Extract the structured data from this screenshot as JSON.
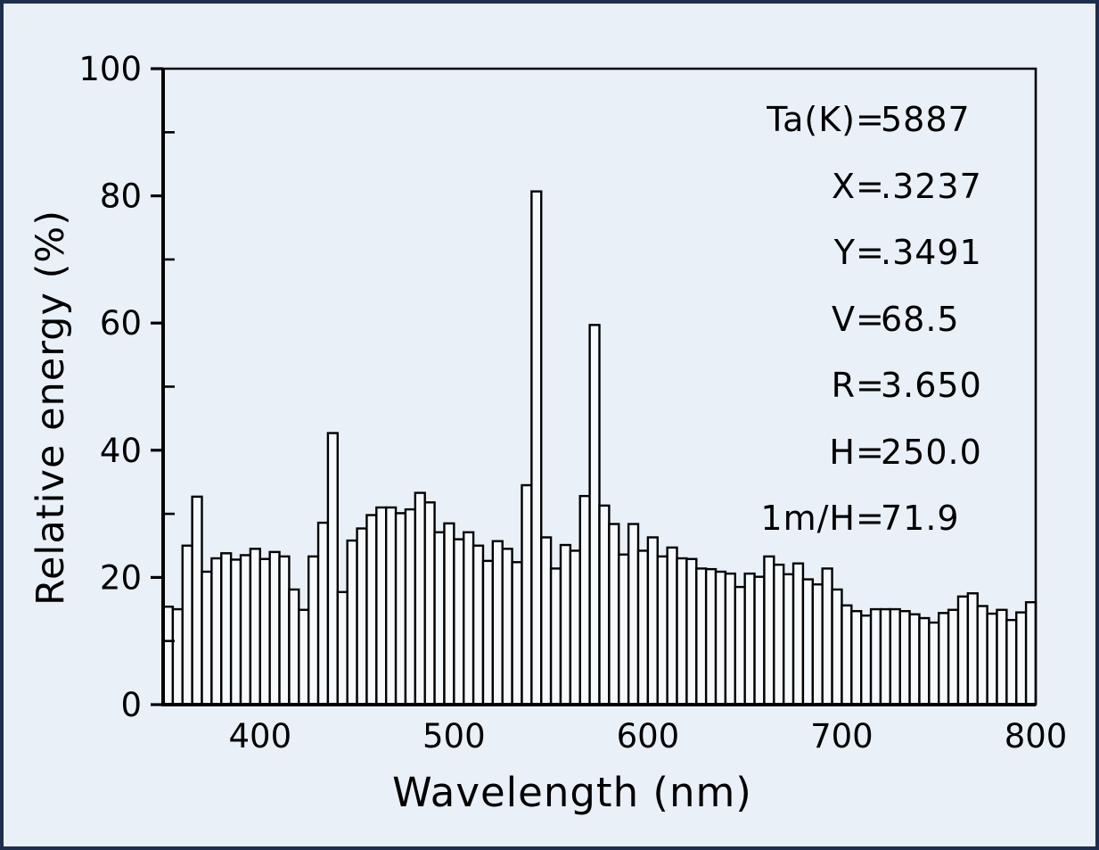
{
  "page": {
    "background_color": "#eaf0f8",
    "border_color": "#1e2f4d"
  },
  "chart_data": {
    "type": "bar",
    "title": "",
    "xlabel": "Wavelength (nm)",
    "ylabel": "Relative energy (%)",
    "xlim": [
      350,
      800
    ],
    "ylim": [
      0,
      100
    ],
    "x_major_ticks": [
      400,
      500,
      600,
      700,
      800
    ],
    "y_major_ticks": [
      0,
      20,
      40,
      60,
      80,
      100
    ],
    "y_minor_ticks": [
      10,
      30,
      50,
      70,
      90
    ],
    "grid": "off",
    "legend": "none",
    "bin_width_nm": 5,
    "bar_fill": "#f7fafd",
    "bar_stroke": "#000000",
    "wavelengths_nm": [
      350,
      355,
      360,
      365,
      370,
      375,
      380,
      385,
      390,
      395,
      400,
      405,
      410,
      415,
      420,
      425,
      430,
      435,
      440,
      445,
      450,
      455,
      460,
      465,
      470,
      475,
      480,
      485,
      490,
      495,
      500,
      505,
      510,
      515,
      520,
      525,
      530,
      535,
      540,
      545,
      550,
      555,
      560,
      565,
      570,
      575,
      580,
      585,
      590,
      595,
      600,
      605,
      610,
      615,
      620,
      625,
      630,
      635,
      640,
      645,
      650,
      655,
      660,
      665,
      670,
      675,
      680,
      685,
      690,
      695,
      700,
      705,
      710,
      715,
      720,
      725,
      730,
      735,
      740,
      745,
      750,
      755,
      760,
      765,
      770,
      775,
      780,
      785,
      790,
      795
    ],
    "values": [
      15.4,
      15.0,
      25.0,
      32.7,
      20.9,
      23.0,
      23.8,
      22.8,
      23.5,
      24.5,
      22.9,
      24.0,
      23.3,
      18.1,
      14.9,
      23.3,
      28.6,
      42.7,
      17.7,
      25.8,
      27.7,
      29.8,
      31.0,
      31.0,
      30.1,
      30.7,
      33.3,
      31.8,
      27.1,
      28.5,
      26.0,
      27.1,
      25.0,
      22.6,
      25.7,
      24.5,
      22.4,
      34.5,
      80.7,
      26.3,
      21.4,
      25.1,
      24.2,
      32.8,
      59.7,
      31.3,
      28.4,
      23.6,
      28.4,
      24.2,
      26.3,
      23.3,
      24.7,
      23.0,
      22.9,
      21.4,
      21.3,
      20.9,
      20.6,
      18.5,
      20.6,
      20.1,
      23.3,
      22.0,
      20.5,
      22.2,
      19.7,
      18.9,
      21.4,
      18.1,
      15.6,
      14.7,
      14.0,
      15.0,
      15.0,
      15.0,
      14.7,
      14.2,
      13.6,
      12.9,
      14.4,
      14.9,
      17.0,
      17.5,
      15.5,
      14.3,
      14.9,
      13.3,
      14.5,
      16.1
    ]
  },
  "annotation": {
    "lines": [
      {
        "label": "Ta(K)",
        "value": "5887"
      },
      {
        "label": "X",
        "value": ".3237"
      },
      {
        "label": "Y",
        "value": ".3491"
      },
      {
        "label": "V",
        "value": "68.5"
      },
      {
        "label": "R",
        "value": "3.650"
      },
      {
        "label": "H",
        "value": "250.0"
      },
      {
        "label": "1m/H",
        "value": "71.9"
      }
    ]
  }
}
